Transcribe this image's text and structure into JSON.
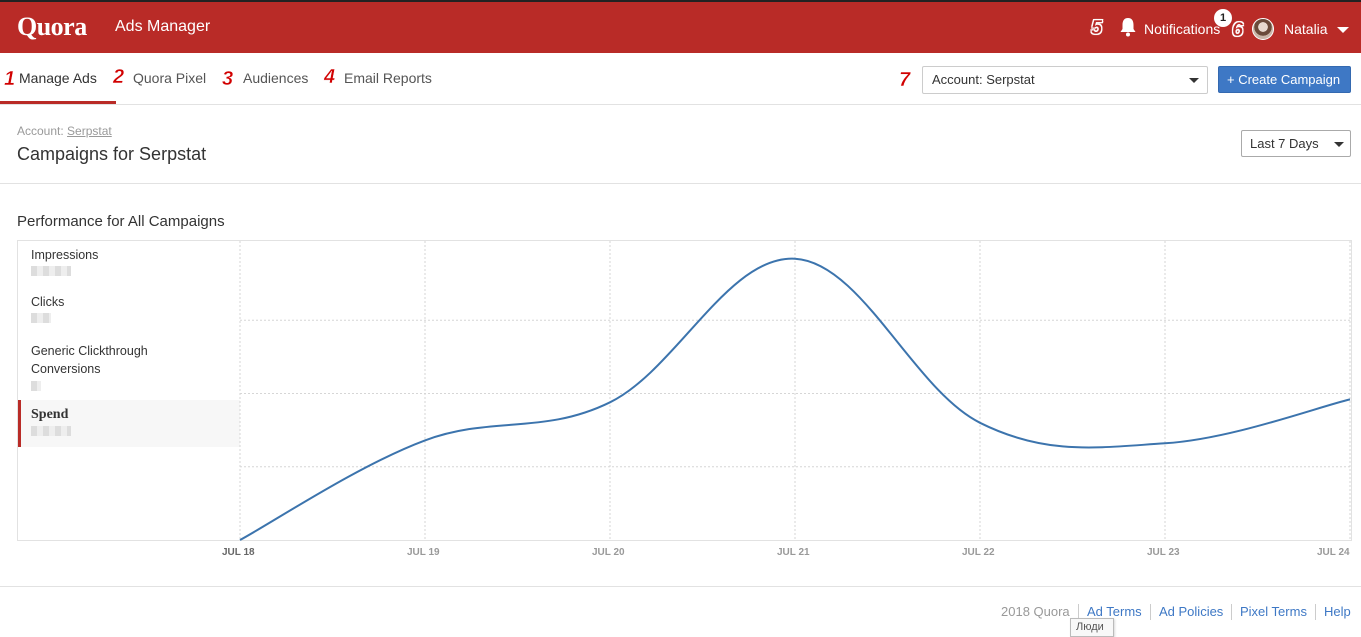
{
  "header": {
    "logo": "Quora",
    "app_title": "Ads Manager",
    "notifications_label": "Notifications",
    "notifications_count": "1",
    "user_name": "Natalia"
  },
  "callouts": [
    "1",
    "2",
    "3",
    "4",
    "5",
    "6",
    "7"
  ],
  "nav": {
    "tabs": [
      {
        "label": "Manage Ads",
        "active": true
      },
      {
        "label": "Quora Pixel",
        "active": false
      },
      {
        "label": "Audiences",
        "active": false
      },
      {
        "label": "Email Reports",
        "active": false
      }
    ],
    "account_select": "Account: Serpstat",
    "create_button": "+ Create Campaign"
  },
  "page": {
    "crumb_prefix": "Account:",
    "crumb_link": "Serpstat",
    "title": "Campaigns for Serpstat",
    "date_range": "Last 7 Days",
    "perf_title": "Performance for All Campaigns"
  },
  "metrics": [
    {
      "label": "Impressions",
      "selected": false
    },
    {
      "label": "Clicks",
      "selected": false
    },
    {
      "label": "Generic Clickthrough Conversions",
      "selected": false
    },
    {
      "label": "Spend",
      "selected": true
    }
  ],
  "chart_data": {
    "type": "line",
    "x": [
      "JUL 18",
      "JUL 19",
      "JUL 20",
      "JUL 21",
      "JUL 22",
      "JUL 23",
      "JUL 24"
    ],
    "series": [
      {
        "values": [
          0,
          0.34,
          0.47,
          0.96,
          0.4,
          0.33,
          0.48
        ]
      }
    ],
    "ylim": [
      0,
      1
    ],
    "grid": true,
    "line_color": "#3c74ad"
  },
  "footer": {
    "copyright": "2018 Quora",
    "links": [
      "Ad Terms",
      "Ad Policies",
      "Pixel Terms",
      "Help"
    ],
    "tooltip": "Люди"
  },
  "colors": {
    "brand": "#b92b27",
    "primary_button": "#3e78c5"
  }
}
